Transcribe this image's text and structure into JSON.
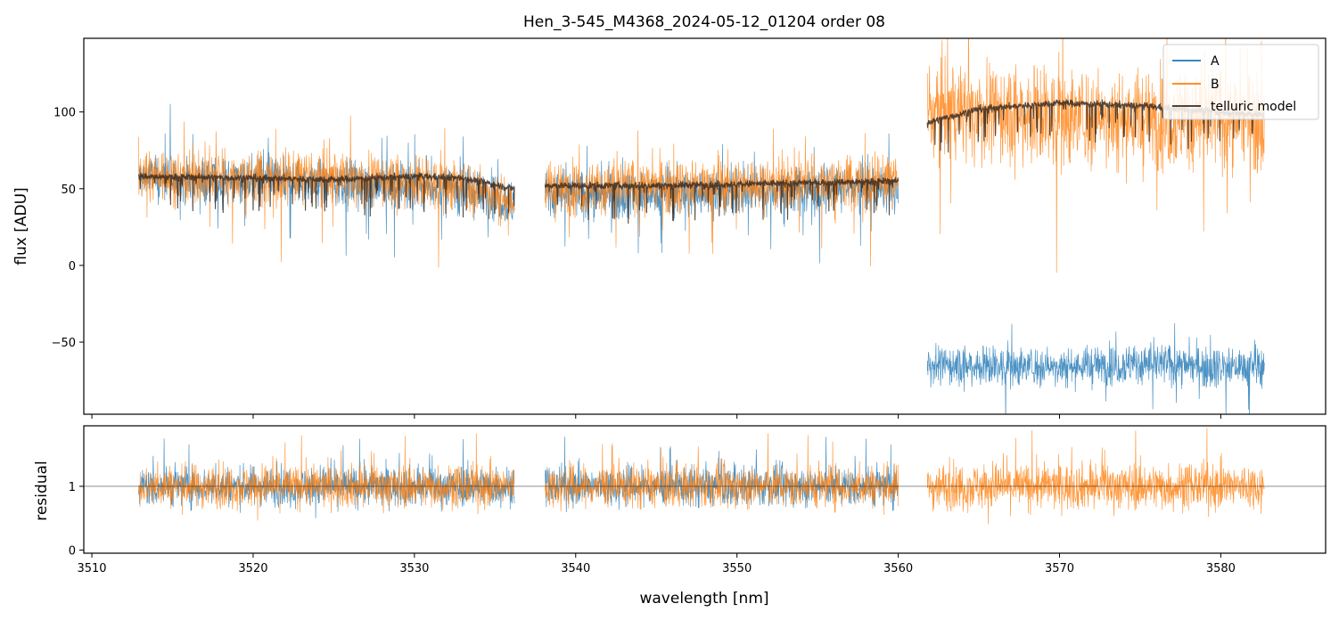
{
  "chart_data": [
    {
      "type": "line",
      "panel": "flux",
      "title": "Hen_3-545_M4368_2024-05-12_01204  order 08",
      "xlabel": "",
      "ylabel": "flux [ADU]",
      "xlim": [
        3509.5,
        3586.5
      ],
      "ylim": [
        -97,
        148
      ],
      "y_ticks": [
        -50,
        0,
        50,
        100
      ],
      "y_tick_labels": [
        "−50",
        "0",
        "50",
        "100"
      ],
      "legend_position": "top-right",
      "series": [
        {
          "name": "A",
          "color": "#1f77b4",
          "segments": [
            {
              "x0": 3512.9,
              "x1": 3536.2,
              "x": [
                3512.9,
                3515,
                3520,
                3525,
                3530,
                3533,
                3535,
                3536.2
              ],
              "y": [
                58,
                56,
                55,
                54,
                52,
                50,
                45,
                40
              ],
              "noise": 14
            },
            {
              "x0": 3538.1,
              "x1": 3560.0,
              "x": [
                3538.1,
                3540,
                3545,
                3550,
                3555,
                3560
              ],
              "y": [
                48,
                46,
                47,
                48,
                50,
                50
              ],
              "noise": 14
            },
            {
              "x0": 3561.8,
              "x1": 3582.7,
              "x": [
                3561.8,
                3565,
                3570,
                3575,
                3580,
                3582.7
              ],
              "y": [
                -65,
                -65,
                -66,
                -64,
                -66,
                -66
              ],
              "noise": 12
            }
          ]
        },
        {
          "name": "B",
          "color": "#ff7f0e",
          "segments": [
            {
              "x0": 3512.9,
              "x1": 3536.2,
              "x": [
                3512.9,
                3515,
                3520,
                3525,
                3530,
                3533,
                3535,
                3536.2
              ],
              "y": [
                60,
                58,
                58,
                57,
                55,
                52,
                46,
                40
              ],
              "noise": 16
            },
            {
              "x0": 3538.1,
              "x1": 3560.0,
              "x": [
                3538.1,
                3540,
                3545,
                3550,
                3555,
                3560
              ],
              "y": [
                50,
                50,
                52,
                52,
                55,
                55
              ],
              "noise": 16
            },
            {
              "x0": 3561.8,
              "x1": 3582.7,
              "x": [
                3561.8,
                3565,
                3570,
                3575,
                3580,
                3582.7
              ],
              "y": [
                100,
                100,
                98,
                95,
                96,
                95
              ],
              "noise": 30
            }
          ]
        },
        {
          "name": "telluric model",
          "color": "#3b2a1e",
          "segments": [
            {
              "x0": 3512.9,
              "x1": 3536.2,
              "x": [
                3512.9,
                3520,
                3525,
                3530,
                3533,
                3536.2
              ],
              "y": [
                58,
                57,
                56,
                58,
                57,
                50
              ]
            },
            {
              "x0": 3538.1,
              "x1": 3560.0,
              "x": [
                3538.1,
                3545,
                3550,
                3555,
                3560
              ],
              "y": [
                52,
                52,
                53,
                54,
                55
              ]
            },
            {
              "x0": 3561.8,
              "x1": 3582.7,
              "x": [
                3561.8,
                3565,
                3570,
                3575,
                3580,
                3582.7
              ],
              "y": [
                93,
                102,
                106,
                104,
                100,
                98
              ]
            }
          ]
        }
      ]
    },
    {
      "type": "line",
      "panel": "residual",
      "xlabel": "wavelength [nm]",
      "ylabel": "residual",
      "xlim": [
        3509.5,
        3586.5
      ],
      "ylim": [
        -0.05,
        1.95
      ],
      "x_ticks": [
        3510,
        3520,
        3530,
        3540,
        3550,
        3560,
        3570,
        3580
      ],
      "x_tick_labels": [
        "3510",
        "3520",
        "3530",
        "3540",
        "3550",
        "3560",
        "3570",
        "3580"
      ],
      "y_ticks": [
        0,
        1
      ],
      "y_tick_labels": [
        "0",
        "1"
      ],
      "reference_line": 1,
      "series": [
        {
          "name": "A",
          "color": "#1f77b4",
          "segments": [
            {
              "x0": 3512.9,
              "x1": 3536.2,
              "level": 1,
              "noise": 0.28
            },
            {
              "x0": 3538.1,
              "x1": 3560.0,
              "level": 1,
              "noise": 0.28
            }
          ]
        },
        {
          "name": "B",
          "color": "#ff7f0e",
          "segments": [
            {
              "x0": 3512.9,
              "x1": 3536.2,
              "level": 1,
              "noise": 0.3
            },
            {
              "x0": 3538.1,
              "x1": 3560.0,
              "level": 1,
              "noise": 0.3
            },
            {
              "x0": 3561.8,
              "x1": 3582.7,
              "level": 1,
              "noise": 0.33
            }
          ]
        }
      ]
    }
  ]
}
